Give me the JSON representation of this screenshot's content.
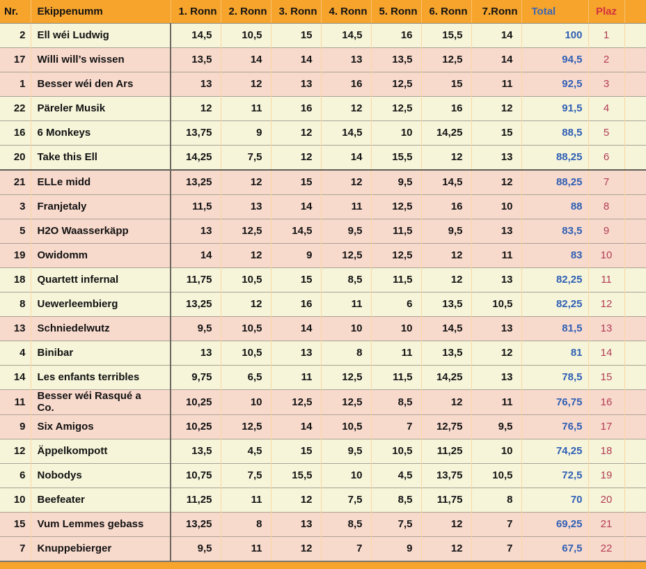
{
  "colors": {
    "header_background": "#F6A42C",
    "row_cream": "#F6F5DA",
    "row_pink": "#F8DACD",
    "total_text": "#2F5FB4",
    "plaz_header_text": "#D23240",
    "plaz_value_text": "#B23C55",
    "body_text": "#121212",
    "dark_divider": "#5f5d56"
  },
  "chart_data": {
    "type": "table",
    "title": "",
    "columns": [
      "Nr.",
      "Ekippenumm",
      "1. Ronn",
      "2. Ronn",
      "3. Ronn",
      "4. Ronn",
      "5. Ronn",
      "6. Ronn",
      "7.Ronn",
      "Total",
      "Plaz",
      ""
    ],
    "rows": [
      {
        "nr": "2",
        "name": "Ell wéi Ludwig",
        "rounds": [
          "14,5",
          "10,5",
          "15",
          "14,5",
          "16",
          "15,5",
          "14"
        ],
        "total": "100",
        "plaz": "1",
        "tone": "cream",
        "group_start": false
      },
      {
        "nr": "17",
        "name": "Willi will’s wissen",
        "rounds": [
          "13,5",
          "14",
          "14",
          "13",
          "13,5",
          "12,5",
          "14"
        ],
        "total": "94,5",
        "plaz": "2",
        "tone": "pink",
        "group_start": false
      },
      {
        "nr": "1",
        "name": "Besser wéi den Ars",
        "rounds": [
          "13",
          "12",
          "13",
          "16",
          "12,5",
          "15",
          "11"
        ],
        "total": "92,5",
        "plaz": "3",
        "tone": "pink",
        "group_start": false
      },
      {
        "nr": "22",
        "name": "Päreler Musik",
        "rounds": [
          "12",
          "11",
          "16",
          "12",
          "12,5",
          "16",
          "12"
        ],
        "total": "91,5",
        "plaz": "4",
        "tone": "cream",
        "group_start": false
      },
      {
        "nr": "16",
        "name": "6 Monkeys",
        "rounds": [
          "13,75",
          "9",
          "12",
          "14,5",
          "10",
          "14,25",
          "15"
        ],
        "total": "88,5",
        "plaz": "5",
        "tone": "cream",
        "group_start": false
      },
      {
        "nr": "20",
        "name": "Take this Ell",
        "rounds": [
          "14,25",
          "7,5",
          "12",
          "14",
          "15,5",
          "12",
          "13"
        ],
        "total": "88,25",
        "plaz": "6",
        "tone": "cream",
        "group_start": false
      },
      {
        "nr": "21",
        "name": "ELLe midd",
        "rounds": [
          "13,25",
          "12",
          "15",
          "12",
          "9,5",
          "14,5",
          "12"
        ],
        "total": "88,25",
        "plaz": "7",
        "tone": "pink",
        "group_start": true
      },
      {
        "nr": "3",
        "name": "Franjetaly",
        "rounds": [
          "11,5",
          "13",
          "14",
          "11",
          "12,5",
          "16",
          "10"
        ],
        "total": "88",
        "plaz": "8",
        "tone": "pink",
        "group_start": false
      },
      {
        "nr": "5",
        "name": "H2O Waasserkäpp",
        "rounds": [
          "13",
          "12,5",
          "14,5",
          "9,5",
          "11,5",
          "9,5",
          "13"
        ],
        "total": "83,5",
        "plaz": "9",
        "tone": "pink",
        "group_start": false
      },
      {
        "nr": "19",
        "name": "Owidomm",
        "rounds": [
          "14",
          "12",
          "9",
          "12,5",
          "12,5",
          "12",
          "11"
        ],
        "total": "83",
        "plaz": "10",
        "tone": "pink",
        "group_start": false
      },
      {
        "nr": "18",
        "name": "Quartett infernal",
        "rounds": [
          "11,75",
          "10,5",
          "15",
          "8,5",
          "11,5",
          "12",
          "13"
        ],
        "total": "82,25",
        "plaz": "11",
        "tone": "cream",
        "group_start": false
      },
      {
        "nr": "8",
        "name": "Uewerleembierg",
        "rounds": [
          "13,25",
          "12",
          "16",
          "11",
          "6",
          "13,5",
          "10,5"
        ],
        "total": "82,25",
        "plaz": "12",
        "tone": "cream",
        "group_start": false
      },
      {
        "nr": "13",
        "name": "Schniedelwutz",
        "rounds": [
          "9,5",
          "10,5",
          "14",
          "10",
          "10",
          "14,5",
          "13"
        ],
        "total": "81,5",
        "plaz": "13",
        "tone": "pink",
        "group_start": false
      },
      {
        "nr": "4",
        "name": "Binibar",
        "rounds": [
          "13",
          "10,5",
          "13",
          "8",
          "11",
          "13,5",
          "12"
        ],
        "total": "81",
        "plaz": "14",
        "tone": "cream",
        "group_start": false
      },
      {
        "nr": "14",
        "name": "Les enfants terribles",
        "rounds": [
          "9,75",
          "6,5",
          "11",
          "12,5",
          "11,5",
          "14,25",
          "13"
        ],
        "total": "78,5",
        "plaz": "15",
        "tone": "cream",
        "group_start": false
      },
      {
        "nr": "11",
        "name": "Besser wéi Rasqué a\nCo.",
        "rounds": [
          "10,25",
          "10",
          "12,5",
          "12,5",
          "8,5",
          "12",
          "11"
        ],
        "total": "76,75",
        "plaz": "16",
        "tone": "pink",
        "group_start": false
      },
      {
        "nr": "9",
        "name": "Six Amigos",
        "rounds": [
          "10,25",
          "12,5",
          "14",
          "10,5",
          "7",
          "12,75",
          "9,5"
        ],
        "total": "76,5",
        "plaz": "17",
        "tone": "pink",
        "group_start": false
      },
      {
        "nr": "12",
        "name": "Äppelkompott",
        "rounds": [
          "13,5",
          "4,5",
          "15",
          "9,5",
          "10,5",
          "11,25",
          "10"
        ],
        "total": "74,25",
        "plaz": "18",
        "tone": "cream",
        "group_start": false
      },
      {
        "nr": "6",
        "name": "Nobodys",
        "rounds": [
          "10,75",
          "7,5",
          "15,5",
          "10",
          "4,5",
          "13,75",
          "10,5"
        ],
        "total": "72,5",
        "plaz": "19",
        "tone": "cream",
        "group_start": false
      },
      {
        "nr": "10",
        "name": "Beefeater",
        "rounds": [
          "11,25",
          "11",
          "12",
          "7,5",
          "8,5",
          "11,75",
          "8"
        ],
        "total": "70",
        "plaz": "20",
        "tone": "cream",
        "group_start": false
      },
      {
        "nr": "15",
        "name": "Vum Lemmes gebass",
        "rounds": [
          "13,25",
          "8",
          "13",
          "8,5",
          "7,5",
          "12",
          "7"
        ],
        "total": "69,25",
        "plaz": "21",
        "tone": "pink",
        "group_start": false
      },
      {
        "nr": "7",
        "name": "Knuppebierger",
        "rounds": [
          "9,5",
          "11",
          "12",
          "7",
          "9",
          "12",
          "7"
        ],
        "total": "67,5",
        "plaz": "22",
        "tone": "pink",
        "group_start": false
      }
    ]
  }
}
